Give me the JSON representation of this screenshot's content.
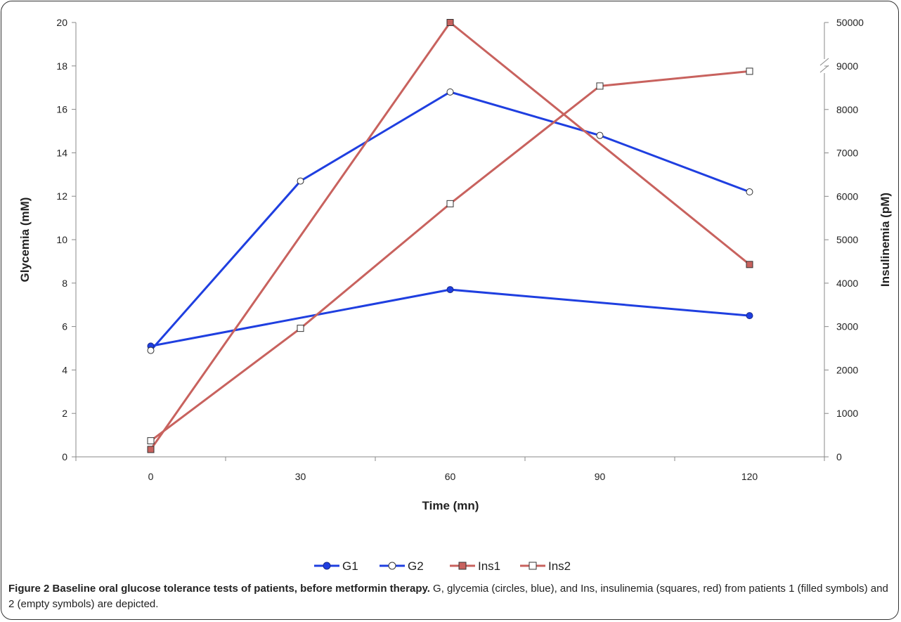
{
  "chart_data": {
    "type": "line",
    "xlabel": "Time (mn)",
    "ylabel": "Glycemia (mM)",
    "y2label": "Insulinemia (pM)",
    "x_ticks": [
      0,
      30,
      60,
      90,
      120
    ],
    "xlim": [
      -15,
      135
    ],
    "ylim": [
      0,
      20
    ],
    "y_ticks": [
      0,
      2,
      4,
      6,
      8,
      10,
      12,
      14,
      16,
      18,
      20
    ],
    "y2lim": [
      0,
      50000
    ],
    "y2_ticks": [
      0,
      1000,
      2000,
      3000,
      4000,
      5000,
      6000,
      7000,
      8000,
      9000,
      50000
    ],
    "y2_axis_break": true,
    "grid": false,
    "legend": "bottom",
    "series": [
      {
        "name": "G1",
        "axis": "left",
        "color": "#1f3fe0",
        "marker": "circle-filled",
        "marker_fill": "#1f3fe0",
        "x": [
          0,
          60,
          120
        ],
        "y": [
          5.1,
          7.7,
          6.5
        ]
      },
      {
        "name": "G2",
        "axis": "left",
        "color": "#1f3fe0",
        "marker": "circle-empty",
        "marker_fill": "#ffffff",
        "x": [
          0,
          30,
          60,
          90,
          120
        ],
        "y": [
          4.9,
          12.7,
          16.8,
          14.8,
          12.2
        ]
      },
      {
        "name": "Ins1",
        "axis": "right",
        "color": "#c8625e",
        "marker": "square-filled",
        "marker_fill": "#c8625e",
        "x": [
          0,
          60,
          120
        ],
        "y": [
          170,
          9700,
          4430
        ]
      },
      {
        "name": "Ins2",
        "axis": "right",
        "color": "#c8625e",
        "marker": "square-empty",
        "marker_fill": "#ffffff",
        "x": [
          0,
          30,
          60,
          90,
          120
        ],
        "y": [
          370,
          2960,
          5830,
          8540,
          8880
        ]
      }
    ]
  },
  "caption": {
    "label": "Figure 2",
    "title": " Baseline oral glucose tolerance tests of patients, before metformin therapy.",
    "body": " G, glycemia (circles, blue), and Ins, insulinemia (squares, red) from patients 1 (filled symbols) and 2 (empty symbols) are depicted."
  }
}
